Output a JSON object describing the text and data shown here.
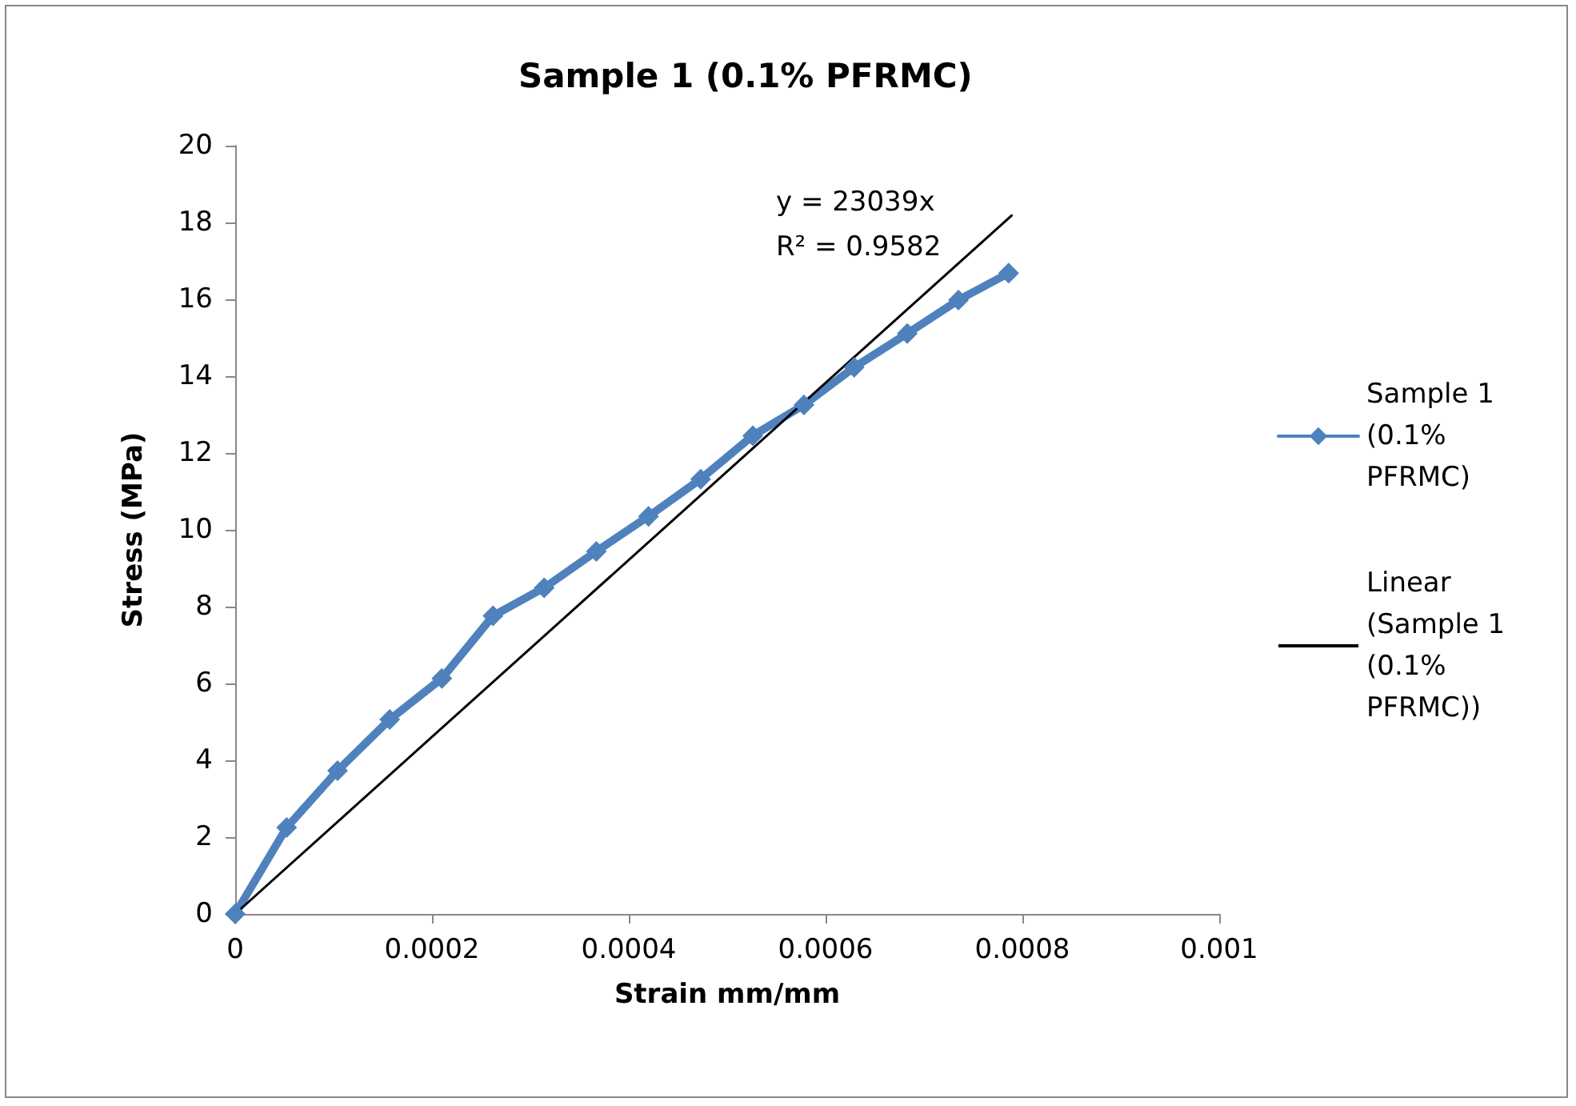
{
  "chart_data": {
    "type": "line",
    "title": "Sample 1 (0.1% PFRMC)",
    "xlabel": "Strain mm/mm",
    "ylabel": "Stress (MPa)",
    "x": [
      0,
      5.23e-05,
      0.000104,
      0.000157,
      0.00021,
      0.000262,
      0.000314,
      0.000367,
      0.00042,
      0.000473,
      0.000526,
      0.000578,
      0.000629,
      0.000683,
      0.000735,
      0.000786
    ],
    "series": [
      {
        "name": "Sample 1 (0.1% PFRMC)",
        "color": "#4f81bd",
        "marker": "diamond",
        "values": [
          0,
          2.25,
          3.73,
          5.06,
          6.13,
          7.76,
          8.49,
          9.44,
          10.35,
          11.32,
          12.45,
          13.25,
          14.23,
          15.11,
          15.98,
          16.68
        ]
      },
      {
        "name": "Linear (Sample 1 (0.1% PFRMC))",
        "color": "#000000",
        "marker": "none",
        "x": [
          0,
          0.000789
        ],
        "values": [
          0,
          18.18
        ]
      }
    ],
    "xlim": [
      0,
      0.001
    ],
    "xticks": [
      0,
      0.0002,
      0.0004,
      0.0006,
      0.0008,
      0.001
    ],
    "ylim": [
      0,
      20
    ],
    "yticks": [
      0,
      2,
      4,
      6,
      8,
      10,
      12,
      14,
      16,
      18,
      20
    ],
    "annotations": [
      "y = 23039x",
      "R² = 0.9582"
    ],
    "grid": false,
    "legend": "right",
    "line_style": "solid"
  }
}
